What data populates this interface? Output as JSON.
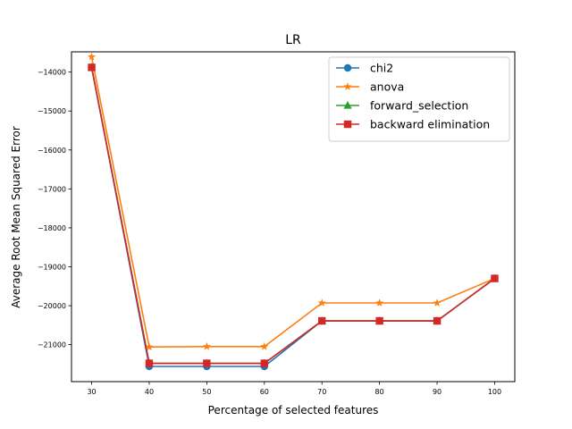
{
  "chart_data": {
    "type": "line",
    "title": "LR",
    "xlabel": "Percentage of selected features",
    "ylabel": "Average Root Mean Squared Error",
    "x": [
      30,
      40,
      50,
      60,
      70,
      80,
      90,
      100
    ],
    "xlim": [
      26.5,
      103.5
    ],
    "ylim": [
      -21950,
      -13480
    ],
    "xticks": [
      30,
      40,
      50,
      60,
      70,
      80,
      90,
      100
    ],
    "yticks": [
      -14000,
      -15000,
      -16000,
      -17000,
      -18000,
      -19000,
      -20000,
      -21000
    ],
    "grid": false,
    "legend_position": "top-right",
    "series": [
      {
        "name": "chi2",
        "color": "#1f77b4",
        "marker": "circle",
        "values": [
          -13880,
          -21560,
          -21560,
          -21560,
          -20390,
          -20390,
          -20390,
          -19300
        ]
      },
      {
        "name": "anova",
        "color": "#ff7f0e",
        "marker": "star",
        "values": [
          -13610,
          -21060,
          -21050,
          -21050,
          -19930,
          -19930,
          -19930,
          -19300
        ]
      },
      {
        "name": "forward_selection",
        "color": "#2ca02c",
        "marker": "triangle",
        "values": [
          -13880,
          -21480,
          -21480,
          -21480,
          -20390,
          -20390,
          -20390,
          -19300
        ]
      },
      {
        "name": "backward elimination",
        "color": "#d62728",
        "marker": "square",
        "values": [
          -13880,
          -21480,
          -21480,
          -21480,
          -20390,
          -20390,
          -20390,
          -19300
        ]
      }
    ]
  }
}
